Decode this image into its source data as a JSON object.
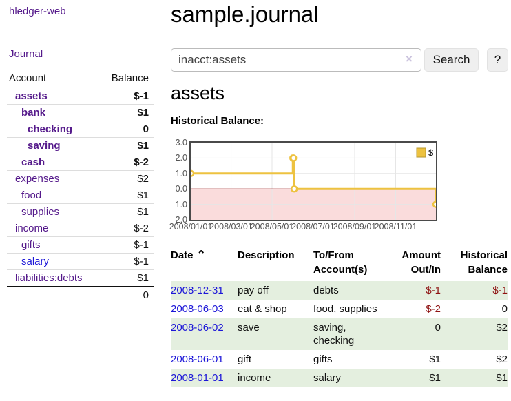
{
  "app": {
    "title": "hledger-web",
    "journal_nav": "Journal"
  },
  "sidebar": {
    "headers": {
      "account": "Account",
      "balance": "Balance"
    },
    "accounts": [
      {
        "name": "assets",
        "depth": 1,
        "bold": true,
        "color": "purple",
        "balance": "$-1",
        "tone": "neg"
      },
      {
        "name": "bank",
        "depth": 2,
        "bold": true,
        "color": "purple",
        "balance": "$1",
        "tone": "pos"
      },
      {
        "name": "checking",
        "depth": 3,
        "bold": true,
        "color": "purple",
        "balance": "0",
        "tone": "pos"
      },
      {
        "name": "saving",
        "depth": 3,
        "bold": true,
        "color": "purple",
        "balance": "$1",
        "tone": "pos"
      },
      {
        "name": "cash",
        "depth": 2,
        "bold": true,
        "color": "purple",
        "balance": "$-2",
        "tone": "neg"
      },
      {
        "name": "expenses",
        "depth": 1,
        "bold": false,
        "color": "purple",
        "balance": "$2",
        "tone": "pos"
      },
      {
        "name": "food",
        "depth": 2,
        "bold": false,
        "color": "purple",
        "balance": "$1",
        "tone": "pos"
      },
      {
        "name": "supplies",
        "depth": 2,
        "bold": false,
        "color": "purple",
        "balance": "$1",
        "tone": "pos"
      },
      {
        "name": "income",
        "depth": 1,
        "bold": false,
        "color": "purple",
        "balance": "$-2",
        "tone": "negl"
      },
      {
        "name": "gifts",
        "depth": 2,
        "bold": false,
        "color": "purple",
        "balance": "$-1",
        "tone": "negl"
      },
      {
        "name": "salary",
        "depth": 2,
        "bold": false,
        "color": "blue",
        "balance": "$-1",
        "tone": "negl"
      },
      {
        "name": "liabilities:debts",
        "depth": 1,
        "bold": false,
        "color": "purple",
        "balance": "$1",
        "tone": "pos"
      }
    ],
    "total": "0"
  },
  "main": {
    "page_title": "sample.journal",
    "search": {
      "value": "inacct:assets",
      "clear_icon": "×",
      "button_label": "Search",
      "help_label": "?"
    },
    "section_title": "assets",
    "chart_label": "Historical Balance:"
  },
  "chart_data": {
    "type": "line",
    "title": "Historical Balance",
    "steps": true,
    "series": [
      {
        "name": "$",
        "color": "#edc240",
        "marker_fill": "#ffffff",
        "points": [
          {
            "date": "2008-01-01",
            "value": 1
          },
          {
            "date": "2008-06-01",
            "value": 2
          },
          {
            "date": "2008-06-02",
            "value": 2
          },
          {
            "date": "2008-06-03",
            "value": 0
          },
          {
            "date": "2008-12-31",
            "value": -1
          }
        ]
      }
    ],
    "x_range": {
      "start": "2008-01-01",
      "end": "2008-12-31"
    },
    "ylim": [
      -2,
      3
    ],
    "y_ticks": [
      {
        "value": 3,
        "label": "3.0"
      },
      {
        "value": 2,
        "label": "2.0"
      },
      {
        "value": 1,
        "label": "1.0"
      },
      {
        "value": 0,
        "label": "0.0"
      },
      {
        "value": -1,
        "label": "-1.0"
      },
      {
        "value": -2,
        "label": "-2.0"
      }
    ],
    "x_ticks": [
      {
        "date": "2008-01-01",
        "label": "2008/01/01"
      },
      {
        "date": "2008-03-01",
        "label": "2008/03/01"
      },
      {
        "date": "2008-05-01",
        "label": "2008/05/01"
      },
      {
        "date": "2008-07-01",
        "label": "2008/07/01"
      },
      {
        "date": "2008-09-01",
        "label": "2008/09/01"
      },
      {
        "date": "2008-11-01",
        "label": "2008/11/01"
      }
    ],
    "grid": true,
    "legend": {
      "label": "$",
      "position": "top-right"
    },
    "negative_region_color": "#fadcdc",
    "zero_line_color": "#8b0000",
    "grid_color": "#e6e6e6",
    "border_color": "#4a4a4a"
  },
  "transactions": {
    "headers": {
      "date": "Date",
      "sort_icon": "⌃",
      "description": "Description",
      "accounts": "To/From Account(s)",
      "amount": "Amount Out/In",
      "balance": "Historical Balance"
    },
    "rows": [
      {
        "date": "2008-12-31",
        "description": "pay off",
        "accounts": "debts",
        "amount": "$-1",
        "amount_tone": "neg",
        "balance": "$-1",
        "balance_tone": "neg",
        "shaded": true
      },
      {
        "date": "2008-06-03",
        "description": "eat & shop",
        "accounts": "food, supplies",
        "amount": "$-2",
        "amount_tone": "neg",
        "balance": "0",
        "balance_tone": "pos",
        "shaded": false
      },
      {
        "date": "2008-06-02",
        "description": "save",
        "accounts": "saving, checking",
        "amount": "0",
        "amount_tone": "pos",
        "balance": "$2",
        "balance_tone": "pos",
        "shaded": true
      },
      {
        "date": "2008-06-01",
        "description": "gift",
        "accounts": "gifts",
        "amount": "$1",
        "amount_tone": "pos",
        "balance": "$2",
        "balance_tone": "pos",
        "shaded": false
      },
      {
        "date": "2008-01-01",
        "description": "income",
        "accounts": "salary",
        "amount": "$1",
        "amount_tone": "pos",
        "balance": "$1",
        "balance_tone": "pos",
        "shaded": true
      }
    ]
  }
}
